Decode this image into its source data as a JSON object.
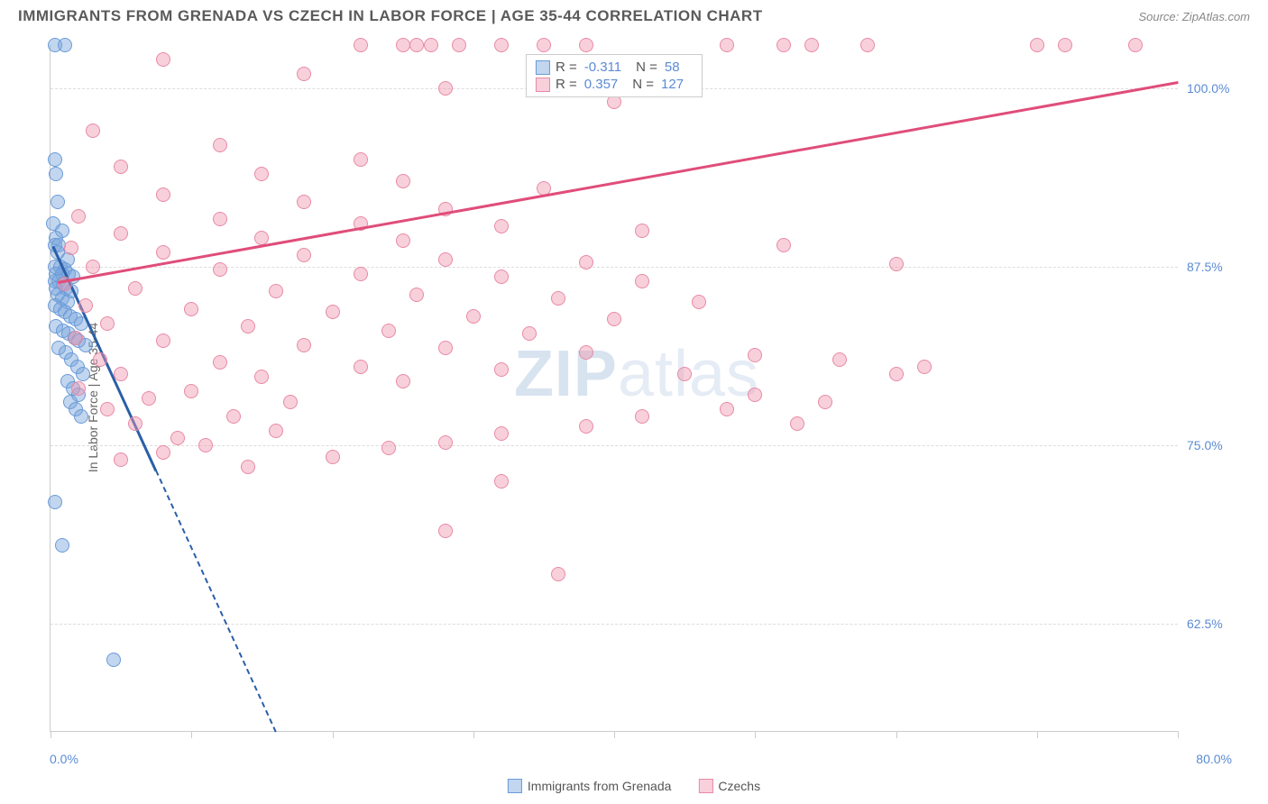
{
  "title": "IMMIGRANTS FROM GRENADA VS CZECH IN LABOR FORCE | AGE 35-44 CORRELATION CHART",
  "source": "Source: ZipAtlas.com",
  "watermark": {
    "bold": "ZIP",
    "light": "atlas"
  },
  "chart": {
    "type": "scatter",
    "background_color": "#ffffff",
    "grid_color": "#dddddd",
    "border_color": "#cccccc",
    "ylabel": "In Labor Force | Age 35-44",
    "ylabel_fontsize": 14,
    "xlim": [
      0,
      80
    ],
    "ylim": [
      55,
      103
    ],
    "ytick_labels": [
      {
        "value": 62.5,
        "label": "62.5%"
      },
      {
        "value": 75.0,
        "label": "75.0%"
      },
      {
        "value": 87.5,
        "label": "87.5%"
      },
      {
        "value": 100.0,
        "label": "100.0%"
      }
    ],
    "xtick_positions": [
      0,
      10,
      20,
      30,
      40,
      50,
      60,
      70,
      80
    ],
    "x_axis_start_label": "0.0%",
    "x_axis_end_label": "80.0%",
    "tick_label_color": "#5b8bd4",
    "series": [
      {
        "name": "Immigrants from Grenada",
        "color_fill": "rgba(120,165,220,0.45)",
        "color_stroke": "#6a9bd8",
        "trend_color": "#2a5fa8",
        "R": "-0.311",
        "N": "58",
        "trend": {
          "x1": 0.2,
          "y1": 89,
          "x2": 16,
          "y2": 55,
          "solid_until_x": 7.5
        },
        "points": [
          [
            0.3,
            103
          ],
          [
            1.0,
            103
          ],
          [
            0.3,
            95
          ],
          [
            0.4,
            94
          ],
          [
            0.5,
            92
          ],
          [
            0.2,
            90.5
          ],
          [
            0.8,
            90
          ],
          [
            0.4,
            89.5
          ],
          [
            0.3,
            89
          ],
          [
            0.6,
            89
          ],
          [
            0.5,
            88.5
          ],
          [
            1.2,
            88
          ],
          [
            0.3,
            87.5
          ],
          [
            0.7,
            87.5
          ],
          [
            1.0,
            87.3
          ],
          [
            0.4,
            87
          ],
          [
            0.8,
            87
          ],
          [
            1.3,
            87
          ],
          [
            1.6,
            86.8
          ],
          [
            0.3,
            86.5
          ],
          [
            0.6,
            86.5
          ],
          [
            0.9,
            86.3
          ],
          [
            0.4,
            86
          ],
          [
            1.1,
            86
          ],
          [
            1.5,
            85.8
          ],
          [
            0.5,
            85.5
          ],
          [
            0.8,
            85.3
          ],
          [
            1.2,
            85
          ],
          [
            0.3,
            84.8
          ],
          [
            0.7,
            84.5
          ],
          [
            1.0,
            84.3
          ],
          [
            1.4,
            84
          ],
          [
            1.8,
            83.8
          ],
          [
            2.2,
            83.5
          ],
          [
            0.4,
            83.3
          ],
          [
            0.9,
            83
          ],
          [
            1.3,
            82.8
          ],
          [
            1.7,
            82.5
          ],
          [
            2.0,
            82.3
          ],
          [
            2.5,
            82
          ],
          [
            0.6,
            81.8
          ],
          [
            1.1,
            81.5
          ],
          [
            1.5,
            81
          ],
          [
            1.9,
            80.5
          ],
          [
            2.3,
            80
          ],
          [
            1.2,
            79.5
          ],
          [
            1.6,
            79
          ],
          [
            2.0,
            78.5
          ],
          [
            1.4,
            78
          ],
          [
            1.8,
            77.5
          ],
          [
            2.2,
            77
          ],
          [
            0.3,
            71
          ],
          [
            0.8,
            68
          ],
          [
            4.5,
            60
          ]
        ]
      },
      {
        "name": "Czechs",
        "color_fill": "rgba(240,150,175,0.45)",
        "color_stroke": "#e88aa5",
        "trend_color": "#e04d7a",
        "R": "0.357",
        "N": "127",
        "trend": {
          "x1": 0.5,
          "y1": 86.5,
          "x2": 80,
          "y2": 100.5
        },
        "points": [
          [
            22,
            103
          ],
          [
            25,
            103
          ],
          [
            26,
            103
          ],
          [
            27,
            103
          ],
          [
            29,
            103
          ],
          [
            32,
            103
          ],
          [
            35,
            103
          ],
          [
            38,
            103
          ],
          [
            48,
            103
          ],
          [
            52,
            103
          ],
          [
            54,
            103
          ],
          [
            58,
            103
          ],
          [
            70,
            103
          ],
          [
            72,
            103
          ],
          [
            77,
            103
          ],
          [
            8,
            102
          ],
          [
            18,
            101
          ],
          [
            28,
            100
          ],
          [
            40,
            99
          ],
          [
            3,
            97
          ],
          [
            12,
            96
          ],
          [
            22,
            95
          ],
          [
            5,
            94.5
          ],
          [
            15,
            94
          ],
          [
            25,
            93.5
          ],
          [
            35,
            93
          ],
          [
            8,
            92.5
          ],
          [
            18,
            92
          ],
          [
            28,
            91.5
          ],
          [
            2,
            91
          ],
          [
            12,
            90.8
          ],
          [
            22,
            90.5
          ],
          [
            32,
            90.3
          ],
          [
            42,
            90
          ],
          [
            5,
            89.8
          ],
          [
            15,
            89.5
          ],
          [
            25,
            89.3
          ],
          [
            52,
            89
          ],
          [
            1.5,
            88.8
          ],
          [
            8,
            88.5
          ],
          [
            18,
            88.3
          ],
          [
            28,
            88
          ],
          [
            38,
            87.8
          ],
          [
            60,
            87.7
          ],
          [
            3,
            87.5
          ],
          [
            12,
            87.3
          ],
          [
            22,
            87
          ],
          [
            32,
            86.8
          ],
          [
            42,
            86.5
          ],
          [
            1,
            86.3
          ],
          [
            6,
            86
          ],
          [
            16,
            85.8
          ],
          [
            26,
            85.5
          ],
          [
            36,
            85.3
          ],
          [
            46,
            85
          ],
          [
            2.5,
            84.8
          ],
          [
            10,
            84.5
          ],
          [
            20,
            84.3
          ],
          [
            30,
            84
          ],
          [
            40,
            83.8
          ],
          [
            4,
            83.5
          ],
          [
            14,
            83.3
          ],
          [
            24,
            83
          ],
          [
            34,
            82.8
          ],
          [
            1.8,
            82.5
          ],
          [
            8,
            82.3
          ],
          [
            18,
            82
          ],
          [
            28,
            81.8
          ],
          [
            38,
            81.5
          ],
          [
            50,
            81.3
          ],
          [
            3.5,
            81
          ],
          [
            12,
            80.8
          ],
          [
            22,
            80.5
          ],
          [
            32,
            80.3
          ],
          [
            56,
            81
          ],
          [
            5,
            80
          ],
          [
            15,
            79.8
          ],
          [
            25,
            79.5
          ],
          [
            62,
            80.5
          ],
          [
            2,
            79
          ],
          [
            10,
            78.8
          ],
          [
            45,
            80
          ],
          [
            7,
            78.3
          ],
          [
            17,
            78
          ],
          [
            50,
            78.5
          ],
          [
            4,
            77.5
          ],
          [
            55,
            78
          ],
          [
            13,
            77
          ],
          [
            48,
            77.5
          ],
          [
            6,
            76.5
          ],
          [
            42,
            77
          ],
          [
            16,
            76
          ],
          [
            38,
            76.3
          ],
          [
            9,
            75.5
          ],
          [
            32,
            75.8
          ],
          [
            53,
            76.5
          ],
          [
            11,
            75
          ],
          [
            28,
            75.2
          ],
          [
            8,
            74.5
          ],
          [
            24,
            74.8
          ],
          [
            5,
            74
          ],
          [
            20,
            74.2
          ],
          [
            14,
            73.5
          ],
          [
            32,
            72.5
          ],
          [
            28,
            69
          ],
          [
            36,
            66
          ],
          [
            60,
            80
          ]
        ]
      }
    ]
  },
  "legend": {
    "R_label": "R =",
    "N_label": "N ="
  }
}
